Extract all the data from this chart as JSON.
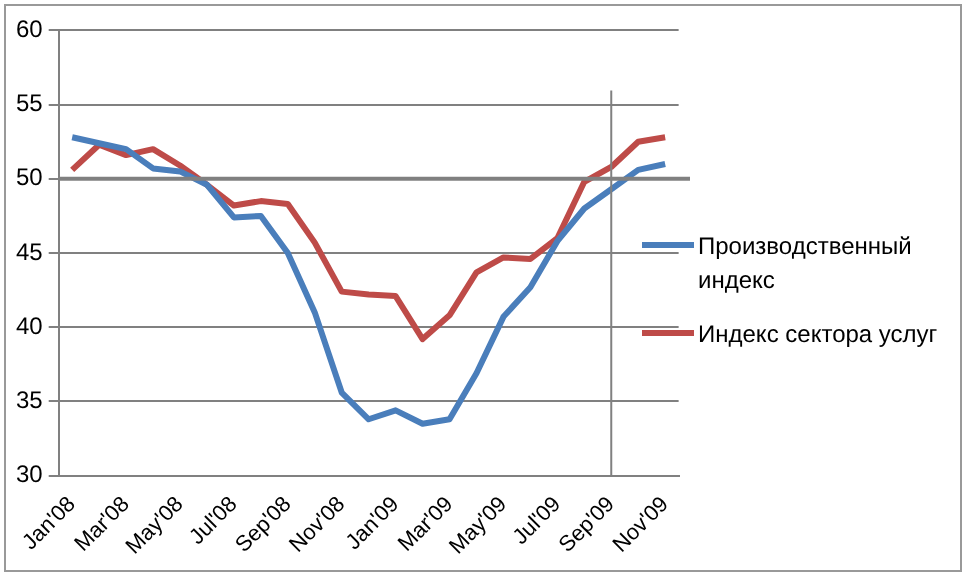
{
  "chart_data": {
    "type": "line",
    "categories": [
      "Jan'08",
      null,
      "Mar'08",
      null,
      "May'08",
      null,
      "Jul'08",
      null,
      "Sep'08",
      null,
      "Nov'08",
      null,
      "Jan'09",
      null,
      "Mar'09",
      null,
      "May'09",
      null,
      "Jul'09",
      null,
      "Sep'09",
      null,
      "Nov'09"
    ],
    "series": [
      {
        "name": "Производственный индекс",
        "color": "#4a7ebb",
        "values": [
          52.8,
          52.4,
          52.0,
          50.7,
          50.5,
          49.6,
          47.4,
          47.5,
          45.0,
          41.0,
          35.6,
          33.8,
          34.4,
          33.5,
          33.8,
          36.9,
          40.7,
          42.7,
          45.8,
          48.0,
          49.3,
          50.6,
          51.0
        ]
      },
      {
        "name": "Индекс сектора услуг",
        "color": "#be4b48",
        "values": [
          50.6,
          52.3,
          51.6,
          52.0,
          50.9,
          49.6,
          48.2,
          48.5,
          48.3,
          45.7,
          42.4,
          42.2,
          42.1,
          39.2,
          40.8,
          43.7,
          44.7,
          44.6,
          46.0,
          49.8,
          50.8,
          52.5,
          52.8
        ]
      }
    ],
    "ylim": [
      30,
      60
    ],
    "yticks": [
      30,
      35,
      40,
      45,
      50,
      55,
      60
    ],
    "grid": "y",
    "legend": "right",
    "marker": "none",
    "line_style": "solid",
    "ref_lines": [
      {
        "axis": "y",
        "value": 50,
        "color": "#808080"
      },
      {
        "axis": "x",
        "value": "Sep'09",
        "color": "#808080"
      }
    ]
  }
}
